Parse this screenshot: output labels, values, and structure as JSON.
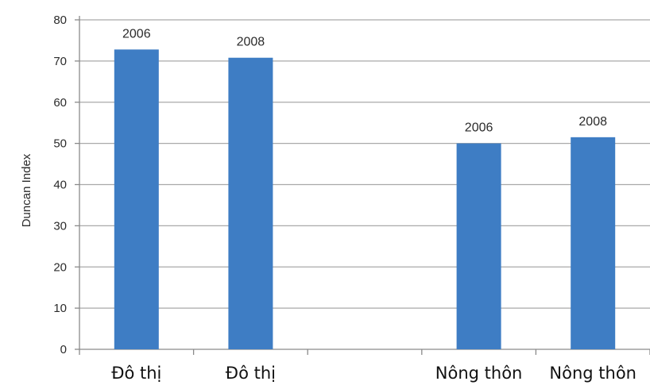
{
  "chart_data": {
    "type": "bar",
    "title": "",
    "xlabel": "",
    "ylabel": "Duncan Index",
    "ylim": [
      0,
      80
    ],
    "yticks": [
      "0",
      "10",
      "20",
      "30",
      "40",
      "50",
      "60",
      "70",
      "80"
    ],
    "categories": [
      "Đô thị",
      "Đô thị",
      "",
      "Nông thôn",
      "Nông thôn"
    ],
    "values": [
      72.8,
      70.8,
      null,
      50.0,
      51.5
    ],
    "data_labels": [
      "2006",
      "2008",
      "",
      "2006",
      "2008"
    ],
    "grid": true,
    "legend": "none",
    "bar_color": "#3e7dc4"
  }
}
